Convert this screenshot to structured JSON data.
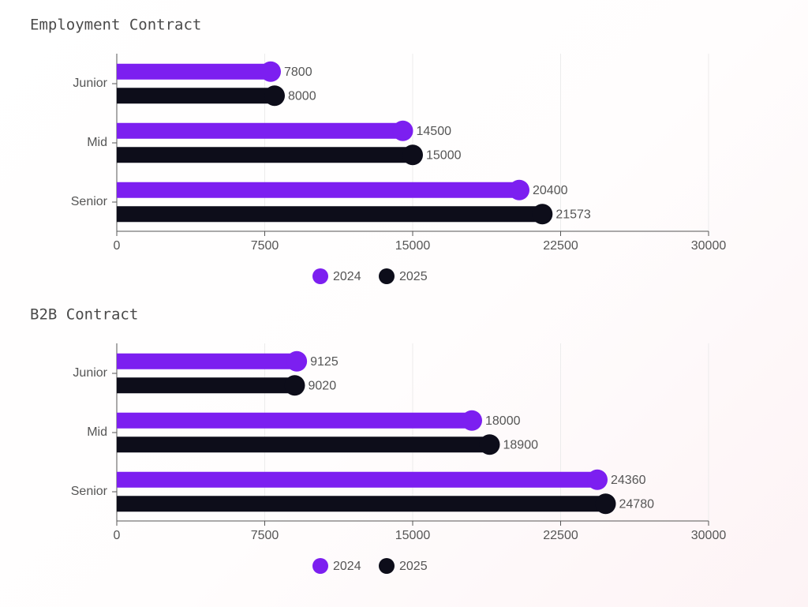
{
  "chart_data": [
    {
      "type": "bar",
      "orientation": "horizontal",
      "title": "Employment Contract",
      "categories": [
        "Junior",
        "Mid",
        "Senior"
      ],
      "series": [
        {
          "name": "2024",
          "color": "#7c1ff0",
          "values": [
            7800,
            14500,
            20400
          ]
        },
        {
          "name": "2025",
          "color": "#0d0d1a",
          "values": [
            8000,
            15000,
            21573
          ]
        }
      ],
      "xlim": [
        0,
        30000
      ],
      "xticks": [
        0,
        7500,
        15000,
        22500,
        30000
      ],
      "grid": true,
      "legend": "bottom"
    },
    {
      "type": "bar",
      "orientation": "horizontal",
      "title": "B2B Contract",
      "categories": [
        "Junior",
        "Mid",
        "Senior"
      ],
      "series": [
        {
          "name": "2024",
          "color": "#7c1ff0",
          "values": [
            9125,
            18000,
            24360
          ]
        },
        {
          "name": "2025",
          "color": "#0d0d1a",
          "values": [
            9020,
            18900,
            24780
          ]
        }
      ],
      "xlim": [
        0,
        30000
      ],
      "xticks": [
        0,
        7500,
        15000,
        22500,
        30000
      ],
      "grid": true,
      "legend": "bottom"
    }
  ]
}
